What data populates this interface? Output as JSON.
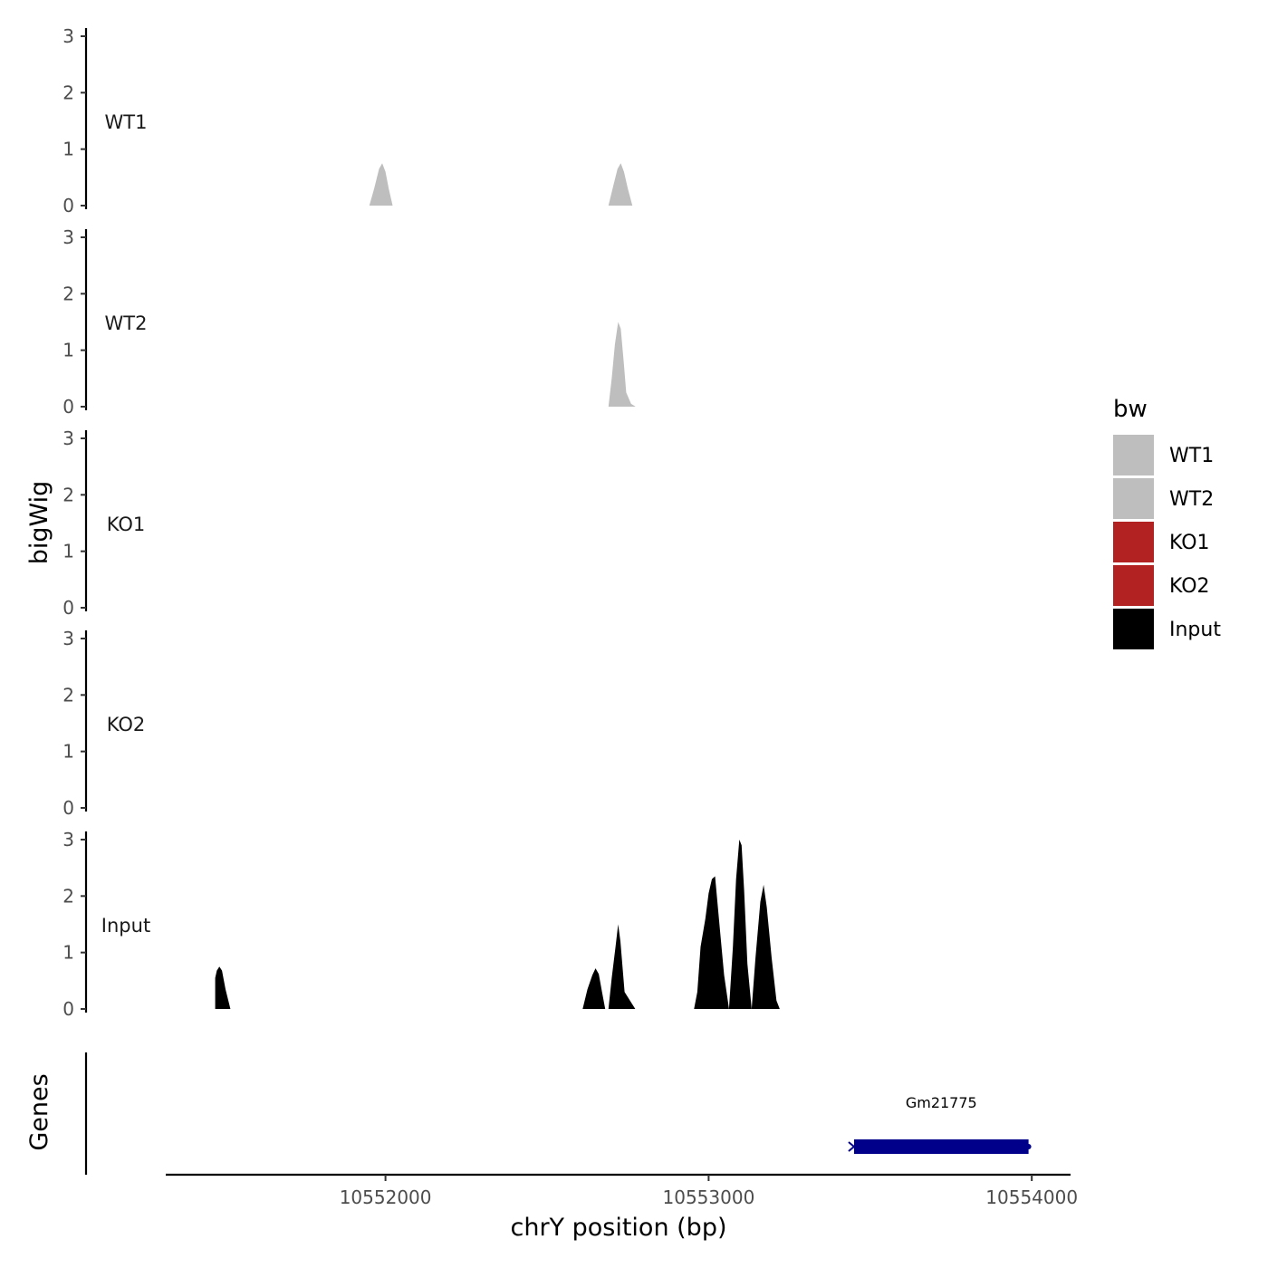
{
  "chart_data": {
    "type": "area",
    "xlabel": "chrY position (bp)",
    "ylabel": "bigWig",
    "genes_label": "Genes",
    "x_range": [
      10551320,
      10554120
    ],
    "x_ticks": [
      10552000,
      10553000,
      10554000
    ],
    "x_tick_labels": [
      "10552000",
      "10553000",
      "10554000"
    ],
    "y_range": [
      0,
      3
    ],
    "y_ticks": [
      0,
      1,
      2,
      3
    ],
    "y_tick_labels": [
      "0",
      "1",
      "2",
      "3"
    ],
    "tracks": [
      {
        "name": "WT1",
        "color": "#BEBEBE",
        "peaks": [
          [
            [
              10551950,
              0
            ],
            [
              10551965,
              0.3
            ],
            [
              10551980,
              0.65
            ],
            [
              10551990,
              0.75
            ],
            [
              10552000,
              0.6
            ],
            [
              10552010,
              0.3
            ],
            [
              10552022,
              0
            ]
          ],
          [
            [
              10552690,
              0
            ],
            [
              10552705,
              0.35
            ],
            [
              10552718,
              0.65
            ],
            [
              10552728,
              0.75
            ],
            [
              10552738,
              0.6
            ],
            [
              10552750,
              0.3
            ],
            [
              10552764,
              0
            ]
          ]
        ]
      },
      {
        "name": "WT2",
        "color": "#BEBEBE",
        "peaks": [
          [
            [
              10552690,
              0
            ],
            [
              10552700,
              0.5
            ],
            [
              10552710,
              1.1
            ],
            [
              10552720,
              1.5
            ],
            [
              10552728,
              1.38
            ],
            [
              10552737,
              0.8
            ],
            [
              10552745,
              0.25
            ],
            [
              10552760,
              0.05
            ],
            [
              10552774,
              0
            ]
          ]
        ]
      },
      {
        "name": "KO1",
        "color": "#B22222",
        "peaks": []
      },
      {
        "name": "KO2",
        "color": "#B22222",
        "peaks": []
      },
      {
        "name": "Input",
        "color": "#000000",
        "peaks": [
          [
            [
              10551473,
              0
            ],
            [
              10551473,
              0.55
            ],
            [
              10551478,
              0.68
            ],
            [
              10551486,
              0.75
            ],
            [
              10551494,
              0.68
            ],
            [
              10551505,
              0.35
            ],
            [
              10551520,
              0
            ]
          ],
          [
            [
              10552610,
              0
            ],
            [
              10552625,
              0.35
            ],
            [
              10552640,
              0.6
            ],
            [
              10552650,
              0.72
            ],
            [
              10552660,
              0.62
            ],
            [
              10552670,
              0.3
            ],
            [
              10552680,
              0
            ]
          ],
          [
            [
              10552690,
              0
            ],
            [
              10552700,
              0.55
            ],
            [
              10552712,
              1.1
            ],
            [
              10552720,
              1.5
            ],
            [
              10552727,
              1.2
            ],
            [
              10552740,
              0.3
            ],
            [
              10552773,
              0
            ]
          ],
          [
            [
              10552955,
              0
            ],
            [
              10552965,
              0.3
            ],
            [
              10552975,
              1.1
            ],
            [
              10552990,
              1.6
            ],
            [
              10553000,
              2.05
            ],
            [
              10553010,
              2.3
            ],
            [
              10553020,
              2.35
            ],
            [
              10553035,
              1.4
            ],
            [
              10553048,
              0.6
            ],
            [
              10553063,
              0
            ]
          ],
          [
            [
              10553063,
              0
            ],
            [
              10553075,
              1.1
            ],
            [
              10553085,
              2.3
            ],
            [
              10553095,
              3.0
            ],
            [
              10553102,
              2.9
            ],
            [
              10553110,
              2.1
            ],
            [
              10553120,
              0.8
            ],
            [
              10553133,
              0
            ]
          ],
          [
            [
              10553133,
              0
            ],
            [
              10553145,
              0.9
            ],
            [
              10553160,
              1.9
            ],
            [
              10553170,
              2.2
            ],
            [
              10553180,
              1.8
            ],
            [
              10553195,
              0.9
            ],
            [
              10553210,
              0.15
            ],
            [
              10553220,
              0
            ]
          ]
        ]
      }
    ],
    "genes": [
      {
        "name": "Gm21775",
        "start": 10553450,
        "end": 10553990,
        "strand": "-",
        "color": "#00008B"
      }
    ],
    "legend": {
      "title": "bw",
      "position": "right",
      "items": [
        {
          "label": "WT1",
          "color": "#BEBEBE"
        },
        {
          "label": "WT2",
          "color": "#BEBEBE"
        },
        {
          "label": "KO1",
          "color": "#B22222"
        },
        {
          "label": "KO2",
          "color": "#B22222"
        },
        {
          "label": "Input",
          "color": "#000000"
        }
      ]
    },
    "grid": false
  }
}
